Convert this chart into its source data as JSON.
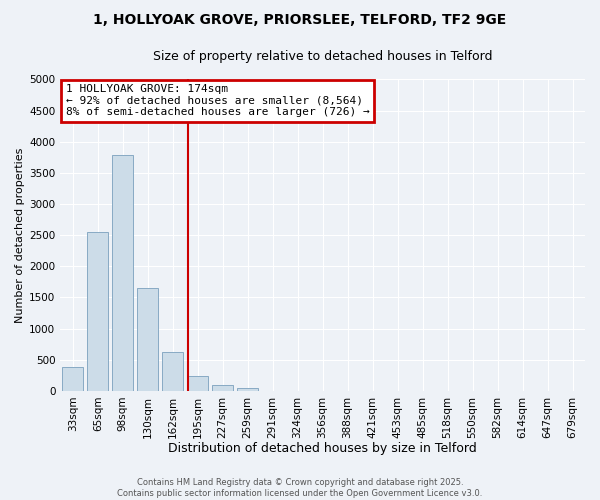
{
  "title_line1": "1, HOLLYOAK GROVE, PRIORSLEE, TELFORD, TF2 9GE",
  "title_line2": "Size of property relative to detached houses in Telford",
  "xlabel": "Distribution of detached houses by size in Telford",
  "ylabel": "Number of detached properties",
  "categories": [
    "33sqm",
    "65sqm",
    "98sqm",
    "130sqm",
    "162sqm",
    "195sqm",
    "227sqm",
    "259sqm",
    "291sqm",
    "324sqm",
    "356sqm",
    "388sqm",
    "421sqm",
    "453sqm",
    "485sqm",
    "518sqm",
    "550sqm",
    "582sqm",
    "614sqm",
    "647sqm",
    "679sqm"
  ],
  "values": [
    390,
    2550,
    3780,
    1650,
    620,
    240,
    100,
    45,
    0,
    0,
    0,
    0,
    0,
    0,
    0,
    0,
    0,
    0,
    0,
    0,
    0
  ],
  "bar_color": "#ccdce8",
  "bar_edge_color": "#88aac4",
  "vline_color": "#cc0000",
  "vline_x": 4.62,
  "ylim": [
    0,
    5000
  ],
  "yticks": [
    0,
    500,
    1000,
    1500,
    2000,
    2500,
    3000,
    3500,
    4000,
    4500,
    5000
  ],
  "annotation_title": "1 HOLLYOAK GROVE: 174sqm",
  "annotation_line1": "← 92% of detached houses are smaller (8,564)",
  "annotation_line2": "8% of semi-detached houses are larger (726) →",
  "annotation_box_edgecolor": "#cc0000",
  "footer_line1": "Contains HM Land Registry data © Crown copyright and database right 2025.",
  "footer_line2": "Contains public sector information licensed under the Open Government Licence v3.0.",
  "bg_color": "#eef2f7",
  "grid_color": "#ffffff",
  "title1_fontsize": 10,
  "title2_fontsize": 9,
  "xlabel_fontsize": 9,
  "ylabel_fontsize": 8,
  "tick_fontsize": 7.5,
  "footer_fontsize": 6,
  "annot_fontsize": 8
}
